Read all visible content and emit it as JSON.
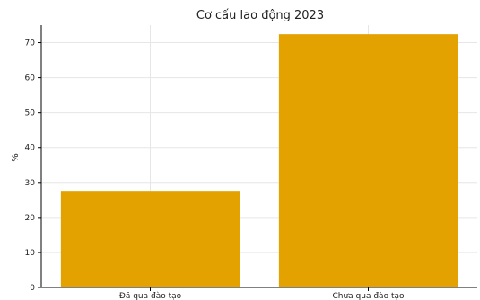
{
  "chart_data": {
    "type": "bar",
    "title": "Cơ cấu lao động 2023",
    "xlabel": "",
    "ylabel": "%",
    "categories": [
      "Đã qua đào tạo",
      "Chưa qua đào tạo"
    ],
    "values": [
      27.6,
      72.4
    ],
    "ylim": [
      0,
      75
    ],
    "yticks": [
      0,
      10,
      20,
      30,
      40,
      50,
      60,
      70
    ],
    "grid": true,
    "bar_color": "#e3a200"
  }
}
